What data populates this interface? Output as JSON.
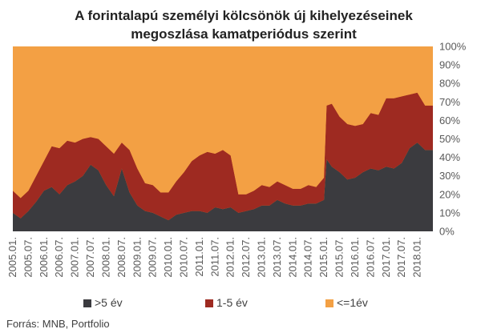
{
  "chart_data": {
    "type": "area",
    "stacked": "percent",
    "title_lines": [
      "A forintalapú személyi kölcsönök új kihelyezéseinek",
      "megoszlása kamatperiódus szerint"
    ],
    "xlabel": "",
    "ylabel": "",
    "ylim": [
      0,
      100
    ],
    "y_ticks": [
      "0%",
      "10%",
      "20%",
      "30%",
      "40%",
      "50%",
      "60%",
      "70%",
      "80%",
      "90%",
      "100%"
    ],
    "y_axis_side": "right",
    "x_ticks": [
      "2005.01.",
      "2005.07.",
      "2006.01.",
      "2006.07.",
      "2007.01.",
      "2007.07.",
      "2008.01.",
      "2008.07.",
      "2009.01.",
      "2009.07.",
      "2010.01.",
      "2010.07.",
      "2011.01.",
      "2011.07.",
      "2012.01.",
      "2012.07.",
      "2013.01.",
      "2013.07.",
      "2014.01.",
      "2014.07.",
      "2015.01.",
      "2015.07.",
      "2016.01.",
      "2016.07.",
      "2017.01.",
      "2017.07.",
      "2018.01."
    ],
    "x_tick_rotation": -90,
    "x_start": "2005.01.",
    "x_end": "2018.07.",
    "legend_position": "bottom",
    "series": [
      {
        "name": ">5 év",
        "color": "#3b3b3f",
        "points": [
          [
            "2005.01.",
            10
          ],
          [
            "2005.04.",
            7
          ],
          [
            "2005.07.",
            11
          ],
          [
            "2005.10.",
            16
          ],
          [
            "2006.01.",
            22
          ],
          [
            "2006.04.",
            24
          ],
          [
            "2006.07.",
            20
          ],
          [
            "2006.10.",
            25
          ],
          [
            "2007.01.",
            27
          ],
          [
            "2007.04.",
            30
          ],
          [
            "2007.07.",
            36
          ],
          [
            "2007.10.",
            33
          ],
          [
            "2008.01.",
            25
          ],
          [
            "2008.04.",
            19
          ],
          [
            "2008.07.",
            34
          ],
          [
            "2008.10.",
            21
          ],
          [
            "2009.01.",
            14
          ],
          [
            "2009.04.",
            11
          ],
          [
            "2009.07.",
            10
          ],
          [
            "2009.10.",
            8
          ],
          [
            "2010.01.",
            6
          ],
          [
            "2010.04.",
            9
          ],
          [
            "2010.07.",
            10
          ],
          [
            "2010.10.",
            11
          ],
          [
            "2011.01.",
            11
          ],
          [
            "2011.04.",
            10
          ],
          [
            "2011.07.",
            13
          ],
          [
            "2011.10.",
            12
          ],
          [
            "2012.01.",
            13
          ],
          [
            "2012.04.",
            10
          ],
          [
            "2012.07.",
            11
          ],
          [
            "2012.10.",
            12
          ],
          [
            "2013.01.",
            14
          ],
          [
            "2013.04.",
            14
          ],
          [
            "2013.07.",
            17
          ],
          [
            "2013.10.",
            15
          ],
          [
            "2014.01.",
            14
          ],
          [
            "2014.04.",
            14
          ],
          [
            "2014.07.",
            15
          ],
          [
            "2014.10.",
            15
          ],
          [
            "2015.01.",
            17
          ],
          [
            "2015.02.",
            39
          ],
          [
            "2015.04.",
            35
          ],
          [
            "2015.07.",
            32
          ],
          [
            "2015.10.",
            28
          ],
          [
            "2016.01.",
            29
          ],
          [
            "2016.04.",
            32
          ],
          [
            "2016.07.",
            34
          ],
          [
            "2016.10.",
            33
          ],
          [
            "2017.01.",
            35
          ],
          [
            "2017.04.",
            34
          ],
          [
            "2017.07.",
            37
          ],
          [
            "2017.10.",
            45
          ],
          [
            "2018.01.",
            48
          ],
          [
            "2018.04.",
            44
          ],
          [
            "2018.07.",
            44
          ]
        ]
      },
      {
        "name": "1-5 év",
        "color": "#9e2a21",
        "points": [
          [
            "2005.01.",
            12
          ],
          [
            "2005.04.",
            11
          ],
          [
            "2005.07.",
            11
          ],
          [
            "2005.10.",
            14
          ],
          [
            "2006.01.",
            16
          ],
          [
            "2006.04.",
            22
          ],
          [
            "2006.07.",
            25
          ],
          [
            "2006.10.",
            24
          ],
          [
            "2007.01.",
            21
          ],
          [
            "2007.04.",
            20
          ],
          [
            "2007.07.",
            15
          ],
          [
            "2007.10.",
            17
          ],
          [
            "2008.01.",
            21
          ],
          [
            "2008.04.",
            23
          ],
          [
            "2008.07.",
            14
          ],
          [
            "2008.10.",
            23
          ],
          [
            "2009.01.",
            20
          ],
          [
            "2009.04.",
            15
          ],
          [
            "2009.07.",
            15
          ],
          [
            "2009.10.",
            13
          ],
          [
            "2010.01.",
            15
          ],
          [
            "2010.04.",
            18
          ],
          [
            "2010.07.",
            22
          ],
          [
            "2010.10.",
            27
          ],
          [
            "2011.01.",
            30
          ],
          [
            "2011.04.",
            33
          ],
          [
            "2011.07.",
            29
          ],
          [
            "2011.10.",
            32
          ],
          [
            "2012.01.",
            28
          ],
          [
            "2012.04.",
            10
          ],
          [
            "2012.07.",
            9
          ],
          [
            "2012.10.",
            10
          ],
          [
            "2013.01.",
            11
          ],
          [
            "2013.04.",
            10
          ],
          [
            "2013.07.",
            10
          ],
          [
            "2013.10.",
            10
          ],
          [
            "2014.01.",
            9
          ],
          [
            "2014.04.",
            9
          ],
          [
            "2014.07.",
            10
          ],
          [
            "2014.10.",
            9
          ],
          [
            "2015.01.",
            12
          ],
          [
            "2015.02.",
            29
          ],
          [
            "2015.04.",
            34
          ],
          [
            "2015.07.",
            30
          ],
          [
            "2015.10.",
            30
          ],
          [
            "2016.01.",
            28
          ],
          [
            "2016.04.",
            26
          ],
          [
            "2016.07.",
            30
          ],
          [
            "2016.10.",
            30
          ],
          [
            "2017.01.",
            37
          ],
          [
            "2017.04.",
            38
          ],
          [
            "2017.07.",
            36
          ],
          [
            "2017.10.",
            29
          ],
          [
            "2018.01.",
            27
          ],
          [
            "2018.04.",
            24
          ],
          [
            "2018.07.",
            24
          ]
        ]
      },
      {
        "name": "<=1év",
        "color": "#f3a044",
        "points": [
          [
            "2005.01.",
            78
          ],
          [
            "2005.04.",
            82
          ],
          [
            "2005.07.",
            78
          ],
          [
            "2005.10.",
            70
          ],
          [
            "2006.01.",
            62
          ],
          [
            "2006.04.",
            54
          ],
          [
            "2006.07.",
            55
          ],
          [
            "2006.10.",
            51
          ],
          [
            "2007.01.",
            52
          ],
          [
            "2007.04.",
            50
          ],
          [
            "2007.07.",
            49
          ],
          [
            "2007.10.",
            50
          ],
          [
            "2008.01.",
            54
          ],
          [
            "2008.04.",
            58
          ],
          [
            "2008.07.",
            52
          ],
          [
            "2008.10.",
            56
          ],
          [
            "2009.01.",
            66
          ],
          [
            "2009.04.",
            74
          ],
          [
            "2009.07.",
            75
          ],
          [
            "2009.10.",
            79
          ],
          [
            "2010.01.",
            79
          ],
          [
            "2010.04.",
            73
          ],
          [
            "2010.07.",
            68
          ],
          [
            "2010.10.",
            62
          ],
          [
            "2011.01.",
            59
          ],
          [
            "2011.04.",
            57
          ],
          [
            "2011.07.",
            58
          ],
          [
            "2011.10.",
            56
          ],
          [
            "2012.01.",
            59
          ],
          [
            "2012.04.",
            80
          ],
          [
            "2012.07.",
            80
          ],
          [
            "2012.10.",
            78
          ],
          [
            "2013.01.",
            75
          ],
          [
            "2013.04.",
            76
          ],
          [
            "2013.07.",
            73
          ],
          [
            "2013.10.",
            75
          ],
          [
            "2014.01.",
            77
          ],
          [
            "2014.04.",
            77
          ],
          [
            "2014.07.",
            75
          ],
          [
            "2014.10.",
            76
          ],
          [
            "2015.01.",
            71
          ],
          [
            "2015.02.",
            32
          ],
          [
            "2015.04.",
            31
          ],
          [
            "2015.07.",
            38
          ],
          [
            "2015.10.",
            42
          ],
          [
            "2016.01.",
            43
          ],
          [
            "2016.04.",
            42
          ],
          [
            "2016.07.",
            36
          ],
          [
            "2016.10.",
            37
          ],
          [
            "2017.01.",
            28
          ],
          [
            "2017.04.",
            28
          ],
          [
            "2017.07.",
            27
          ],
          [
            "2017.10.",
            26
          ],
          [
            "2018.01.",
            25
          ],
          [
            "2018.04.",
            32
          ],
          [
            "2018.07.",
            32
          ]
        ]
      }
    ]
  },
  "footer": {
    "source": "Forrás: MNB, Portfolio"
  }
}
